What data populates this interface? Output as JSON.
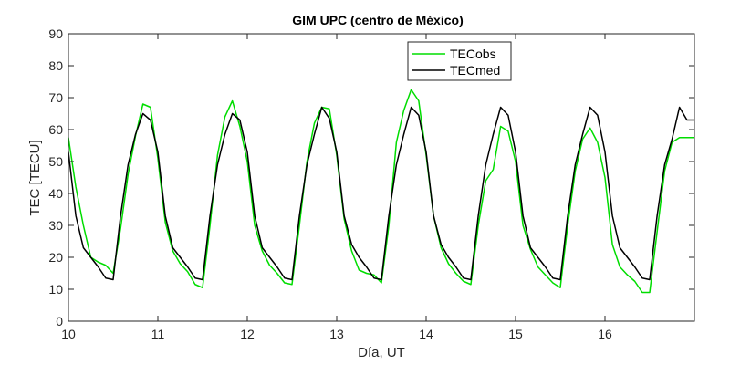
{
  "chart_data": {
    "type": "line",
    "title": "GIM UPC (centro de México)",
    "xlabel": "Día, UT",
    "ylabel": "TEC [TECU]",
    "xlim": [
      10,
      17
    ],
    "ylim": [
      0,
      90
    ],
    "xticks": [
      10,
      11,
      12,
      13,
      14,
      15,
      16
    ],
    "yticks": [
      0,
      10,
      20,
      30,
      40,
      50,
      60,
      70,
      80,
      90
    ],
    "grid": false,
    "legend_position": "top-right",
    "series": [
      {
        "name": "TECobs",
        "color": "#00dd00",
        "x": [
          10.0,
          10.083,
          10.167,
          10.25,
          10.333,
          10.417,
          10.5,
          10.583,
          10.667,
          10.75,
          10.833,
          10.917,
          11.0,
          11.083,
          11.167,
          11.25,
          11.333,
          11.417,
          11.5,
          11.583,
          11.667,
          11.75,
          11.833,
          11.917,
          12.0,
          12.083,
          12.167,
          12.25,
          12.333,
          12.417,
          12.5,
          12.583,
          12.667,
          12.75,
          12.833,
          12.917,
          13.0,
          13.083,
          13.167,
          13.25,
          13.333,
          13.417,
          13.5,
          13.583,
          13.667,
          13.75,
          13.833,
          13.917,
          14.0,
          14.083,
          14.167,
          14.25,
          14.333,
          14.417,
          14.5,
          14.583,
          14.667,
          14.75,
          14.833,
          14.917,
          15.0,
          15.083,
          15.167,
          15.25,
          15.333,
          15.417,
          15.5,
          15.583,
          15.667,
          15.75,
          15.833,
          15.917,
          16.0,
          16.083,
          16.167,
          16.25,
          16.333,
          16.417,
          16.5,
          16.583,
          16.667,
          16.75,
          16.833,
          16.917,
          17.0
        ],
        "values": [
          57.5,
          42,
          30,
          20,
          18.5,
          17.5,
          15,
          29,
          46,
          58,
          68,
          67,
          51,
          31,
          22,
          18,
          15.5,
          11.5,
          10.5,
          30,
          52,
          64,
          69,
          61,
          50,
          30,
          22,
          17.5,
          15,
          12,
          11.5,
          30,
          50,
          62,
          67,
          66.5,
          52,
          32,
          22,
          16,
          15,
          14.5,
          12,
          30,
          56,
          66,
          72.5,
          69,
          52,
          33,
          23,
          18,
          15,
          12.5,
          11.5,
          30,
          44,
          47.5,
          61,
          59.5,
          50,
          30,
          22.5,
          17,
          14.5,
          12,
          10.5,
          30,
          47,
          57,
          60.5,
          56,
          45,
          24,
          17,
          14.5,
          12.5,
          9,
          9,
          28,
          47,
          56,
          57.5,
          57.5,
          57.5
        ]
      },
      {
        "name": "TECmed",
        "color": "#000000",
        "x": [
          10.0,
          10.083,
          10.167,
          10.25,
          10.333,
          10.417,
          10.5,
          10.583,
          10.667,
          10.75,
          10.833,
          10.917,
          11.0,
          11.083,
          11.167,
          11.25,
          11.333,
          11.417,
          11.5,
          11.583,
          11.667,
          11.75,
          11.833,
          11.917,
          12.0,
          12.083,
          12.167,
          12.25,
          12.333,
          12.417,
          12.5,
          12.583,
          12.667,
          12.75,
          12.833,
          12.917,
          13.0,
          13.083,
          13.167,
          13.25,
          13.333,
          13.417,
          13.5,
          13.583,
          13.667,
          13.75,
          13.833,
          13.917,
          14.0,
          14.083,
          14.167,
          14.25,
          14.333,
          14.417,
          14.5,
          14.583,
          14.667,
          14.75,
          14.833,
          14.917,
          15.0,
          15.083,
          15.167,
          15.25,
          15.333,
          15.417,
          15.5,
          15.583,
          15.667,
          15.75,
          15.833,
          15.917,
          16.0,
          16.083,
          16.167,
          16.25,
          16.333,
          16.417,
          16.5,
          16.583,
          16.667,
          16.75,
          16.833,
          16.917,
          17.0
        ],
        "values": [
          53,
          33,
          23,
          20,
          17,
          13.5,
          13,
          33,
          49,
          58.5,
          65,
          63,
          53,
          33,
          23,
          20,
          17,
          13.5,
          13,
          33,
          49,
          58.5,
          65,
          63,
          53,
          33,
          23,
          20,
          17,
          13.5,
          13,
          33,
          49,
          58.5,
          67,
          63.5,
          53,
          33,
          24,
          20,
          17,
          13.5,
          13,
          33,
          49,
          58.5,
          67,
          64.5,
          53,
          33,
          24,
          20,
          17,
          13.5,
          13,
          33,
          49,
          58.5,
          67,
          64.5,
          53,
          33,
          23,
          20,
          17,
          13.5,
          13,
          33,
          49,
          58.5,
          67,
          64.5,
          53,
          33,
          23,
          20,
          17,
          13.5,
          13,
          33,
          49,
          57,
          67,
          63,
          63
        ]
      }
    ]
  }
}
